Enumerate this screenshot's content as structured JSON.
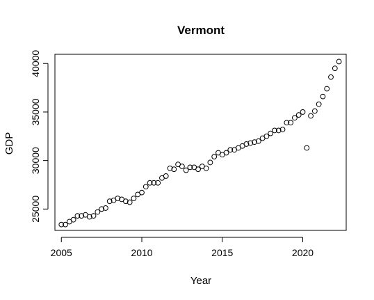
{
  "chart_data": {
    "type": "scatter",
    "title": "Vermont",
    "xlabel": "Year",
    "ylabel": "GDP",
    "xlim": [
      2004.6,
      2022.7
    ],
    "ylim": [
      22800,
      40950
    ],
    "x_ticks": [
      2005,
      2010,
      2015,
      2020
    ],
    "y_ticks": [
      25000,
      30000,
      35000,
      40000
    ],
    "grid": false,
    "legend": "none",
    "series": [
      {
        "x": [
          2005.0,
          2005.25,
          2005.5,
          2005.75,
          2006.0,
          2006.25,
          2006.5,
          2006.75,
          2007.0,
          2007.25,
          2007.5,
          2007.75,
          2008.0,
          2008.25,
          2008.5,
          2008.75,
          2009.0,
          2009.25,
          2009.5,
          2009.75,
          2010.0,
          2010.25,
          2010.5,
          2010.75,
          2011.0,
          2011.25,
          2011.5,
          2011.75,
          2012.0,
          2012.25,
          2012.5,
          2012.75,
          2013.0,
          2013.25,
          2013.5,
          2013.75,
          2014.0,
          2014.25,
          2014.5,
          2014.75,
          2015.0,
          2015.25,
          2015.5,
          2015.75,
          2016.0,
          2016.25,
          2016.5,
          2016.75,
          2017.0,
          2017.25,
          2017.5,
          2017.75,
          2018.0,
          2018.25,
          2018.5,
          2018.75,
          2019.0,
          2019.25,
          2019.5,
          2019.75,
          2020.0,
          2020.25,
          2020.5,
          2020.75,
          2021.0,
          2021.25,
          2021.5,
          2021.75,
          2022.0,
          2022.25
        ],
        "y": [
          23400,
          23400,
          23700,
          23900,
          24300,
          24300,
          24400,
          24200,
          24300,
          24700,
          25000,
          25100,
          25800,
          25900,
          26100,
          26000,
          25800,
          25700,
          26100,
          26500,
          26700,
          27300,
          27700,
          27700,
          27700,
          28200,
          28400,
          29200,
          29100,
          29600,
          29400,
          29000,
          29300,
          29300,
          29100,
          29400,
          29200,
          29800,
          30400,
          30800,
          30600,
          30800,
          31100,
          31100,
          31300,
          31500,
          31700,
          31800,
          31900,
          32000,
          32300,
          32500,
          32800,
          33100,
          33100,
          33200,
          33900,
          33900,
          34400,
          34700,
          35000,
          31300,
          34600,
          35100,
          35800,
          36600,
          37400,
          38600,
          39500,
          40200
        ]
      }
    ]
  }
}
